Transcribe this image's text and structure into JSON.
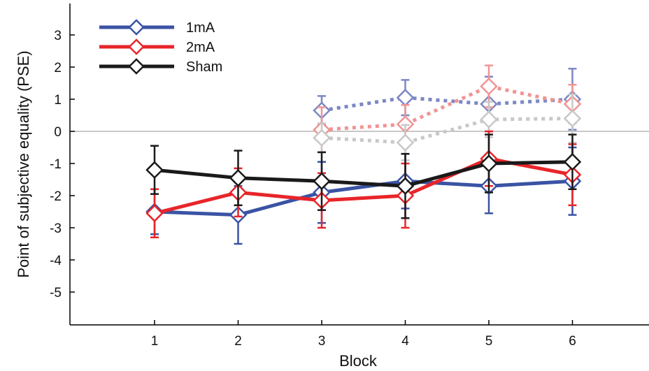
{
  "chart_data": {
    "type": "line",
    "title": "",
    "xlabel": "Block",
    "ylabel": "Point of subjective equality (PSE)",
    "x": [
      1,
      2,
      3,
      4,
      5,
      6
    ],
    "xlim": [
      0.2,
      7
    ],
    "ylim": [
      -6,
      4
    ],
    "xticks": [
      1,
      2,
      3,
      4,
      5,
      6
    ],
    "yticks": [
      3,
      2,
      1,
      0,
      -1,
      -2,
      -3,
      -4,
      -5
    ],
    "reference_line_y": 0,
    "grid": false,
    "legend_position": "top-left",
    "series": [
      {
        "name": "1mA",
        "color": "#3a53a4",
        "style": "solid",
        "x": [
          1,
          2,
          3,
          4,
          5,
          6
        ],
        "values": [
          -2.5,
          -2.6,
          -1.9,
          -1.55,
          -1.7,
          -1.55
        ],
        "error": [
          0.7,
          0.9,
          0.95,
          0.85,
          0.85,
          1.05
        ]
      },
      {
        "name": "2mA",
        "color": "#e8252a",
        "style": "solid",
        "x": [
          1,
          2,
          3,
          4,
          5,
          6
        ],
        "values": [
          -2.55,
          -1.9,
          -2.15,
          -2.0,
          -0.85,
          -1.35
        ],
        "error": [
          0.75,
          0.75,
          0.85,
          1.0,
          0.85,
          0.95
        ]
      },
      {
        "name": "Sham",
        "color": "#1a1a1a",
        "style": "solid",
        "x": [
          1,
          2,
          3,
          4,
          5,
          6
        ],
        "values": [
          -1.2,
          -1.45,
          -1.55,
          -1.7,
          -1.0,
          -0.95
        ],
        "error": [
          0.75,
          0.85,
          0.9,
          1.0,
          0.9,
          0.85
        ]
      },
      {
        "name": "",
        "color": "#7d87c3",
        "style": "dotted",
        "x": [
          3,
          4,
          5,
          6
        ],
        "values": [
          0.65,
          1.05,
          0.85,
          1.0
        ],
        "error": [
          0.45,
          0.55,
          0.85,
          0.95
        ]
      },
      {
        "name": "",
        "color": "#f19494",
        "style": "dotted",
        "x": [
          3,
          4,
          5,
          6
        ],
        "values": [
          0.05,
          0.22,
          1.4,
          0.85
        ],
        "error": [
          0.7,
          0.6,
          0.65,
          0.6
        ]
      },
      {
        "name": "",
        "color": "#c8c8c8",
        "style": "dotted",
        "x": [
          3,
          4,
          5,
          6
        ],
        "values": [
          -0.2,
          -0.35,
          0.37,
          0.4
        ],
        "error": [
          0.45,
          0.55,
          0.55,
          0.75
        ]
      }
    ]
  }
}
